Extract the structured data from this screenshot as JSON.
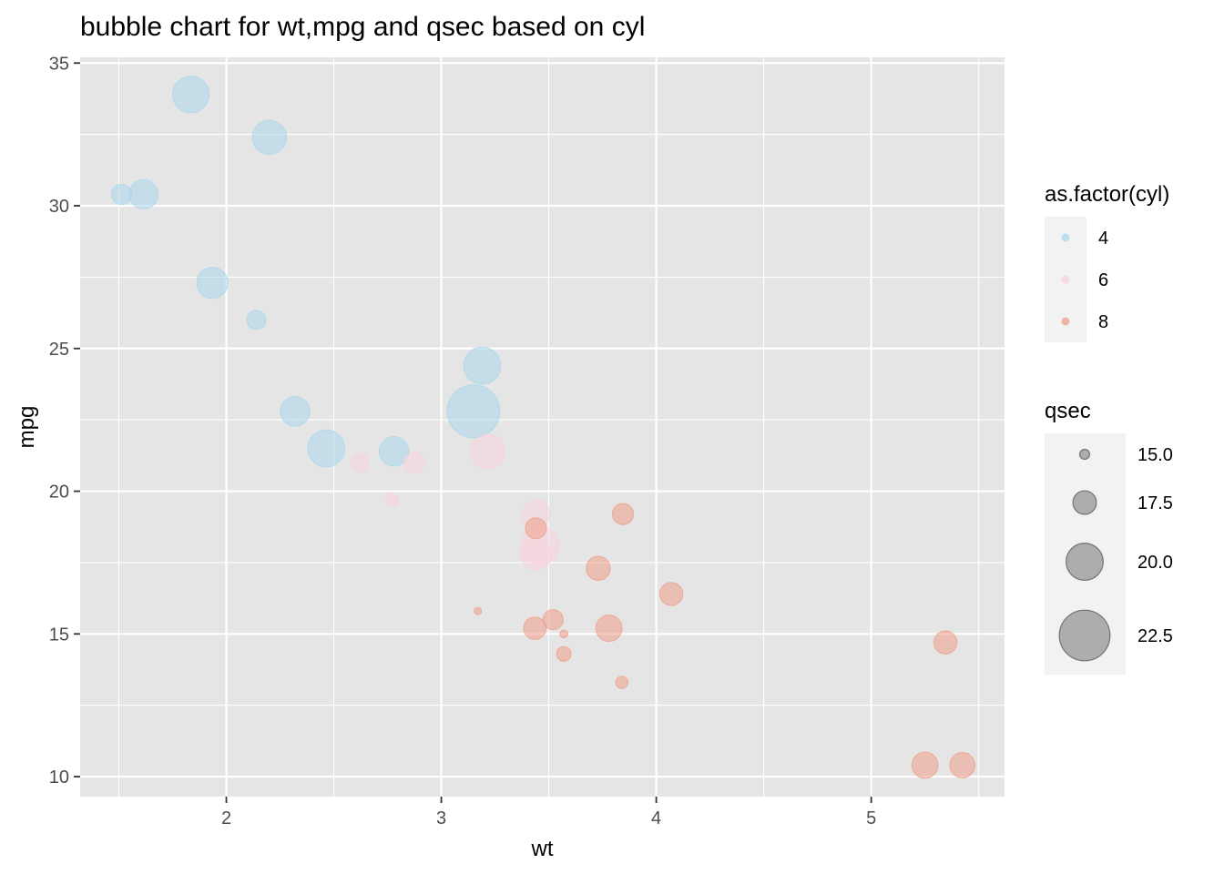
{
  "chart_data": {
    "type": "scatter",
    "title": "bubble chart for wt,mpg and qsec based on cyl",
    "xlabel": "wt",
    "ylabel": "mpg",
    "xlim": [
      1.32,
      5.62
    ],
    "ylim": [
      9.3,
      35.2
    ],
    "x_ticks": [
      2,
      3,
      4,
      5
    ],
    "x_tick_labels": [
      "2",
      "3",
      "4",
      "5"
    ],
    "y_ticks": [
      10,
      15,
      20,
      25,
      30,
      35
    ],
    "y_tick_labels": [
      "10",
      "15",
      "20",
      "25",
      "30",
      "35"
    ],
    "grid": true,
    "panel_background": "#e5e5e5",
    "grid_color": "#ffffff",
    "size_range": [
      14.5,
      22.9
    ],
    "color_legend": {
      "title": "as.factor(cyl)",
      "placement": "right",
      "entries": [
        {
          "label": "4",
          "color": "#a9d7ec"
        },
        {
          "label": "6",
          "color": "#f8d3dc"
        },
        {
          "label": "8",
          "color": "#ef9f88"
        }
      ]
    },
    "size_legend": {
      "title": "qsec",
      "placement": "right",
      "entries": [
        {
          "label": "15.0",
          "value": 15.0
        },
        {
          "label": "17.5",
          "value": 17.5
        },
        {
          "label": "20.0",
          "value": 20.0
        },
        {
          "label": "22.5",
          "value": 22.5
        }
      ]
    },
    "series": [
      {
        "name": "4",
        "color": "#a9d7ec",
        "points": [
          {
            "x": 2.32,
            "y": 22.8,
            "size": 18.61
          },
          {
            "x": 3.19,
            "y": 24.4,
            "size": 20.0
          },
          {
            "x": 3.15,
            "y": 22.8,
            "size": 22.9
          },
          {
            "x": 2.2,
            "y": 32.4,
            "size": 19.47
          },
          {
            "x": 1.615,
            "y": 30.4,
            "size": 18.52
          },
          {
            "x": 1.835,
            "y": 33.9,
            "size": 19.9
          },
          {
            "x": 2.465,
            "y": 21.5,
            "size": 20.01
          },
          {
            "x": 1.935,
            "y": 27.3,
            "size": 18.9
          },
          {
            "x": 2.14,
            "y": 26.0,
            "size": 16.7
          },
          {
            "x": 1.513,
            "y": 30.4,
            "size": 16.9
          },
          {
            "x": 2.78,
            "y": 21.4,
            "size": 18.6
          }
        ]
      },
      {
        "name": "6",
        "color": "#f8d3dc",
        "points": [
          {
            "x": 2.62,
            "y": 21.0,
            "size": 16.46
          },
          {
            "x": 2.875,
            "y": 21.0,
            "size": 17.02
          },
          {
            "x": 3.215,
            "y": 21.4,
            "size": 19.44
          },
          {
            "x": 3.46,
            "y": 18.1,
            "size": 20.22
          },
          {
            "x": 3.44,
            "y": 19.2,
            "size": 18.3
          },
          {
            "x": 3.44,
            "y": 17.8,
            "size": 18.9
          },
          {
            "x": 2.77,
            "y": 19.7,
            "size": 15.5
          }
        ]
      },
      {
        "name": "8",
        "color": "#ef9f88",
        "points": [
          {
            "x": 3.44,
            "y": 18.7,
            "size": 17.02
          },
          {
            "x": 3.57,
            "y": 14.3,
            "size": 15.84
          },
          {
            "x": 4.07,
            "y": 16.4,
            "size": 17.4
          },
          {
            "x": 3.73,
            "y": 17.3,
            "size": 17.6
          },
          {
            "x": 3.78,
            "y": 15.2,
            "size": 18.0
          },
          {
            "x": 5.25,
            "y": 10.4,
            "size": 17.98
          },
          {
            "x": 5.424,
            "y": 10.4,
            "size": 17.82
          },
          {
            "x": 5.345,
            "y": 14.7,
            "size": 17.42
          },
          {
            "x": 3.52,
            "y": 15.5,
            "size": 16.87
          },
          {
            "x": 3.435,
            "y": 15.2,
            "size": 17.3
          },
          {
            "x": 3.84,
            "y": 13.3,
            "size": 15.41
          },
          {
            "x": 3.845,
            "y": 19.2,
            "size": 17.05
          },
          {
            "x": 3.17,
            "y": 15.8,
            "size": 14.5
          },
          {
            "x": 3.57,
            "y": 15.0,
            "size": 14.6
          }
        ]
      }
    ]
  }
}
